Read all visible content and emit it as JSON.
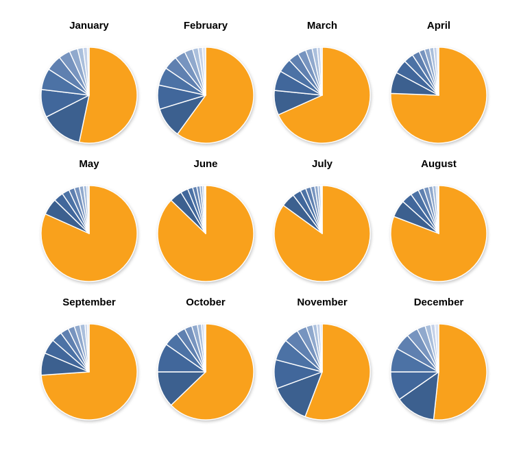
{
  "chart_data": {
    "type": "pie",
    "layout": {
      "rows": 3,
      "cols": 4,
      "legend": "none",
      "background": "#ffffff"
    },
    "values_unit": "percent_share",
    "slice_colors": [
      "#F9A11C",
      "#3C608F",
      "#41679B",
      "#4C72A5",
      "#5F80B0",
      "#7794BF",
      "#90A9CD",
      "#AABFDC",
      "#C4D1E8",
      "#DDE4F2"
    ],
    "slice_order_note": "first value = orange slice starting at 12 o'clock clockwise; remaining values = blue slices dark to light",
    "months": [
      {
        "label": "January",
        "values": [
          53.3,
          14.2,
          9.4,
          7.2,
          5.3,
          3.9,
          2.8,
          1.9,
          1.4,
          0.6
        ]
      },
      {
        "label": "February",
        "values": [
          60.0,
          10.3,
          8.1,
          6.1,
          4.7,
          3.6,
          2.8,
          1.9,
          1.4,
          1.1
        ]
      },
      {
        "label": "March",
        "values": [
          68.3,
          8.3,
          6.7,
          4.7,
          3.6,
          2.8,
          2.2,
          1.7,
          1.1,
          0.6
        ]
      },
      {
        "label": "April",
        "values": [
          75.6,
          7.2,
          4.7,
          3.3,
          2.5,
          1.9,
          1.7,
          1.4,
          1.1,
          0.6
        ]
      },
      {
        "label": "May",
        "values": [
          81.7,
          5.6,
          3.3,
          2.5,
          1.9,
          1.7,
          1.4,
          1.1,
          0.6,
          0.2
        ]
      },
      {
        "label": "June",
        "values": [
          87.2,
          4.2,
          2.5,
          1.7,
          1.4,
          1.1,
          0.8,
          0.6,
          0.4,
          0.1
        ]
      },
      {
        "label": "July",
        "values": [
          85.0,
          4.7,
          2.8,
          1.9,
          1.7,
          1.4,
          1.1,
          0.8,
          0.4,
          0.2
        ]
      },
      {
        "label": "August",
        "values": [
          80.8,
          5.8,
          3.6,
          2.8,
          1.9,
          1.7,
          1.4,
          1.1,
          0.6,
          0.3
        ]
      },
      {
        "label": "September",
        "values": [
          73.9,
          7.5,
          5.0,
          3.6,
          2.8,
          2.2,
          1.9,
          1.7,
          0.8,
          0.6
        ]
      },
      {
        "label": "October",
        "values": [
          62.8,
          12.2,
          9.7,
          5.0,
          3.1,
          2.5,
          1.9,
          1.4,
          0.8,
          0.6
        ]
      },
      {
        "label": "November",
        "values": [
          55.8,
          13.6,
          9.7,
          7.2,
          5.0,
          3.3,
          2.2,
          1.4,
          1.1,
          0.7
        ]
      },
      {
        "label": "December",
        "values": [
          51.7,
          13.6,
          9.7,
          8.1,
          5.6,
          3.9,
          2.8,
          1.9,
          1.4,
          1.3
        ]
      }
    ]
  }
}
